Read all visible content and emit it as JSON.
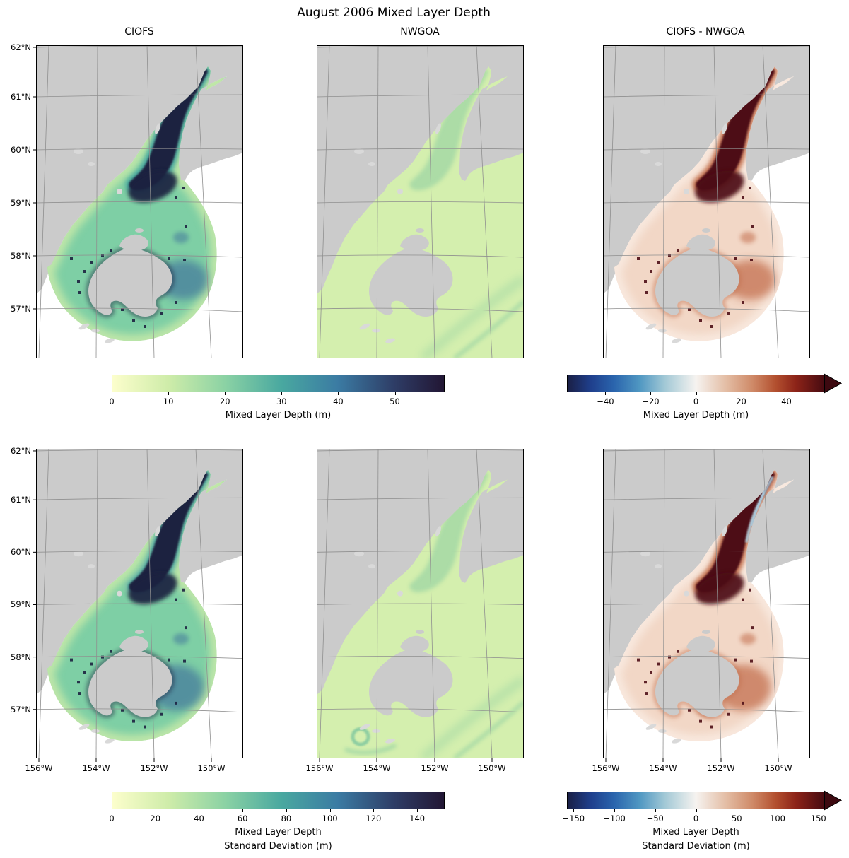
{
  "figure": {
    "title": "August 2006 Mixed Layer Depth"
  },
  "panel_titles": [
    "CIOFS",
    "NWGOA",
    "CIOFS - NWGOA"
  ],
  "axes": {
    "lat_ticks": [
      "62°N",
      "61°N",
      "60°N",
      "59°N",
      "58°N",
      "57°N"
    ],
    "lon_ticks": [
      "156°W",
      "154°W",
      "152°W",
      "150°W"
    ]
  },
  "colorbars": [
    {
      "id": "mld-mean",
      "label": "Mixed Layer Depth (m)",
      "tick_labels": [
        "0",
        "10",
        "20",
        "30",
        "40",
        "50"
      ],
      "tick_values": [
        0,
        10,
        20,
        30,
        40,
        50
      ],
      "vmin": 0,
      "vmax": 58.8,
      "cmap": "deep",
      "extend": "none"
    },
    {
      "id": "mld-diff",
      "label": "Mixed Layer Depth (m)",
      "tick_labels": [
        "−40",
        "−20",
        "0",
        "20",
        "40"
      ],
      "tick_values": [
        -40,
        -20,
        0,
        20,
        40
      ],
      "vmin": -57,
      "vmax": 57,
      "cmap": "balance",
      "extend": "max"
    },
    {
      "id": "sd-mean",
      "label": "Mixed Layer Depth\nStandard Deviation (m)",
      "tick_labels": [
        "0",
        "20",
        "40",
        "60",
        "80",
        "100",
        "120",
        "140"
      ],
      "tick_values": [
        0,
        20,
        40,
        60,
        80,
        100,
        120,
        140
      ],
      "vmin": 0,
      "vmax": 152.6,
      "cmap": "deep",
      "extend": "none"
    },
    {
      "id": "sd-diff",
      "label": "Mixed Layer Depth\nStandard Deviation (m)",
      "tick_labels": [
        "−150",
        "−100",
        "−50",
        "0",
        "50",
        "100",
        "150"
      ],
      "tick_values": [
        -150,
        -100,
        -50,
        0,
        50,
        100,
        150
      ],
      "vmin": -158,
      "vmax": 158,
      "cmap": "balance",
      "extend": "max"
    }
  ],
  "colors": {
    "land": "#cbcbcb",
    "land_light": "#d9d9d9",
    "ocean_nodata": "#ffffff",
    "grid": "#8f8f8f",
    "frame": "#000000",
    "nwgoa_base": "#d4efae",
    "nwgoa_streak": "#6fc09c",
    "ciofs_base": "#7ecfa5",
    "ciofs_edge": "#cdeba9",
    "ciofs_halo": "#47a69e",
    "ciofs_core": "#1d2140",
    "ciofs_blob": "#38669a",
    "ciofs_pale": "#eef6bd",
    "diff_base": "#f2d7c6",
    "diff_edge": "#f9ece3",
    "diff_halo": "#c2704e",
    "diff_core": "#4e0e16",
    "diff_blob": "#b85633",
    "diff_blue": "#a9c8da",
    "arrow_end": "#3d0910",
    "cmap_deep": [
      [
        0,
        "#fcfecc"
      ],
      [
        0.17,
        "#ceeca9"
      ],
      [
        0.34,
        "#8bd2a4"
      ],
      [
        0.51,
        "#49a8a0"
      ],
      [
        0.68,
        "#3b7ba3"
      ],
      [
        0.85,
        "#2e3d66"
      ],
      [
        1,
        "#221634"
      ]
    ],
    "cmap_balance": [
      [
        0,
        "#1a1f45"
      ],
      [
        0.09,
        "#1f3f8c"
      ],
      [
        0.18,
        "#2a64ad"
      ],
      [
        0.28,
        "#4f97c2"
      ],
      [
        0.38,
        "#a3c9d6"
      ],
      [
        0.5,
        "#f6f3f0"
      ],
      [
        0.62,
        "#e3bca3"
      ],
      [
        0.72,
        "#cf8a68"
      ],
      [
        0.81,
        "#b3502f"
      ],
      [
        0.89,
        "#8c2318"
      ],
      [
        1,
        "#470b11"
      ]
    ]
  },
  "chart_data": {
    "type": "heatmap",
    "title": "August 2006 Mixed Layer Depth",
    "layout": "2 rows x 3 columns of geographic map panels (Cook Inlet / Gulf of Alaska region), shared colorbar per column-group",
    "x_axis": {
      "label": "",
      "ticks": [
        "156°W",
        "154°W",
        "152°W",
        "150°W"
      ],
      "shown_on": "bottom row only"
    },
    "y_axis": {
      "label": "",
      "ticks": [
        "62°N",
        "61°N",
        "60°N",
        "59°N",
        "58°N",
        "57°N"
      ],
      "shown_on": "left column only"
    },
    "panels": [
      {
        "row": 1,
        "col": 1,
        "title": "CIOFS",
        "variable": "Mixed Layer Depth (m)",
        "colormap": "cmocean deep (pale yellow → green → teal → dark navy)",
        "value_range": [
          0,
          58.8
        ],
        "description": "Fan-shaped CIOFS model domain; mostly 10–20 m (green); deepest 40–58 m (dark navy) along the Cook Inlet channel and in a patch southeast of Kodiak Island; white = no data outside domain; gray = land."
      },
      {
        "row": 1,
        "col": 2,
        "title": "NWGOA",
        "variable": "Mixed Layer Depth (m)",
        "colormap": "cmocean deep",
        "value_range": [
          0,
          58.8
        ],
        "description": "Data covers the whole ocean; nearly uniform shallow MLD ~3–12 m (pale yellow-green) with faint teal streaks along the shelf break and in the inlet channel."
      },
      {
        "row": 1,
        "col": 3,
        "title": "CIOFS - NWGOA",
        "variable": "Mixed Layer Depth difference (m)",
        "colormap": "cmocean balance (blue −, white 0, red +)",
        "value_range": [
          -57,
          57
        ],
        "description": "Difference almost everywhere positive (red, ~5–57 m); darkest maroon (>40 m) in upper Cook Inlet channel and a red patch southeast of Kodiak; white outside CIOFS domain; gray = land."
      },
      {
        "row": 2,
        "col": 1,
        "title": "CIOFS",
        "variable": "Mixed Layer Depth Standard Deviation (m)",
        "colormap": "cmocean deep",
        "value_range": [
          0,
          152.6
        ],
        "description": "Large SD (dark navy, >100 m) along Cook Inlet channel with pale-yellow fringes, and a broad dark blue patch east/southeast of Kodiak; green ~20–50 m elsewhere in the fan domain."
      },
      {
        "row": 2,
        "col": 2,
        "title": "NWGOA",
        "variable": "Mixed Layer Depth Standard Deviation (m)",
        "colormap": "cmocean deep",
        "value_range": [
          0,
          152.6
        ],
        "description": "Low SD (pale green ~5–20 m) over the whole ocean, slightly higher (teal) in the inlet channel and a small swirl near the southwest corner."
      },
      {
        "row": 2,
        "col": 3,
        "title": "CIOFS - NWGOA",
        "variable": "MLD Standard Deviation difference (m)",
        "colormap": "cmocean balance",
        "value_range": [
          -158,
          158
        ],
        "description": "Mostly positive (red); darkest maroon in the central inlet and east of Kodiak; thin light-blue (negative) streaks along the upper inlet channel; white outside CIOFS domain."
      }
    ],
    "colorbars": [
      {
        "row": 1,
        "applies_to": "CIOFS and NWGOA",
        "label": "Mixed Layer Depth (m)",
        "ticks": [
          0,
          10,
          20,
          30,
          40,
          50
        ],
        "range": [
          0,
          58.8
        ]
      },
      {
        "row": 1,
        "applies_to": "CIOFS - NWGOA",
        "label": "Mixed Layer Depth (m)",
        "ticks": [
          -40,
          -20,
          0,
          20,
          40
        ],
        "range": [
          -57,
          57
        ],
        "extend": "max (arrow on right)"
      },
      {
        "row": 2,
        "applies_to": "CIOFS and NWGOA",
        "label": "Mixed Layer Depth Standard Deviation (m)",
        "ticks": [
          0,
          20,
          40,
          60,
          80,
          100,
          120,
          140
        ],
        "range": [
          0,
          152.6
        ]
      },
      {
        "row": 2,
        "applies_to": "CIOFS - NWGOA",
        "label": "Mixed Layer Depth Standard Deviation (m)",
        "ticks": [
          -150,
          -100,
          -50,
          0,
          50,
          100,
          150
        ],
        "range": [
          -158,
          158
        ],
        "extend": "max (arrow on right)"
      }
    ]
  }
}
